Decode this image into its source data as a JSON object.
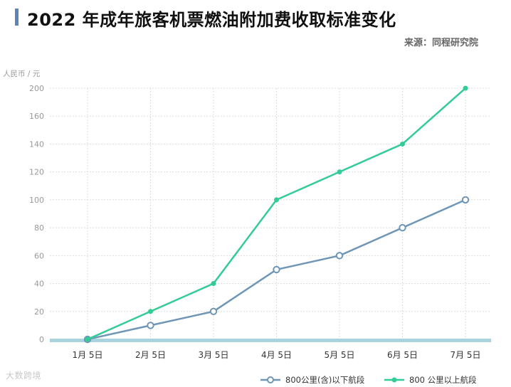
{
  "header": {
    "title": "2022 年成年旅客机票燃油附加费收取标准变化",
    "source": "来源：同程研究院"
  },
  "watermark": "大数跨境",
  "colors": {
    "series_low": "#6f96b6",
    "series_high": "#33cc96",
    "accent_bar": "#5b86b3",
    "baseline": "#a9d3de",
    "grid": "#dcdcdc"
  },
  "chart_data": {
    "type": "line",
    "title": "2022 年成年旅客机票燃油附加费收取标准变化",
    "ylabel": "人民币 / 元",
    "xlabel": "",
    "categories": [
      "1月 5日",
      "2月 5日",
      "3月 5日",
      "4月 5日",
      "5月 5日",
      "6月 5日",
      "7月 5日"
    ],
    "ylim": [
      0,
      200
    ],
    "yticks": [
      0,
      20,
      40,
      60,
      80,
      100,
      120,
      140,
      160,
      200
    ],
    "grid": true,
    "legend_position": "bottom-right",
    "series": [
      {
        "name": "800公里(含)以下航段",
        "values": [
          0,
          10,
          20,
          50,
          60,
          80,
          100
        ],
        "marker": "hollow-circle",
        "color": "#6f96b6"
      },
      {
        "name": "800 公里以上航段",
        "values": [
          0,
          20,
          40,
          100,
          120,
          140,
          200
        ],
        "marker": "filled-circle",
        "color": "#33cc96"
      }
    ]
  }
}
